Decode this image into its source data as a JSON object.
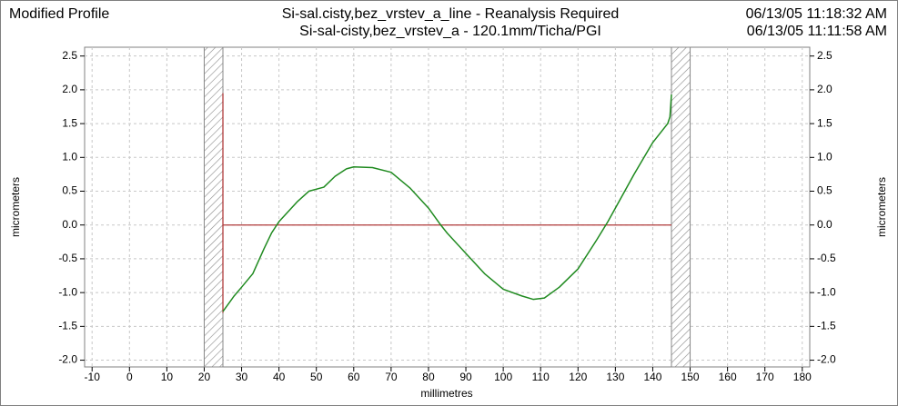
{
  "chart_data": {
    "type": "line",
    "title": "Modified Profile",
    "header_center": [
      "Si-sal.cisty,bez_vrstev_a_line - Reanalysis Required",
      "Si-sal-cisty,bez_vrstev_a - 120.1mm/Ticha/PGI"
    ],
    "header_right": [
      "06/13/05 11:18:32 AM",
      "06/13/05 11:11:58 AM"
    ],
    "x_label": "millimetres",
    "y_label": "micrometers",
    "y2_label": "micrometers",
    "xlim": [
      -12,
      182
    ],
    "ylim": [
      -2.1,
      2.63
    ],
    "y2lim": [
      -2.1,
      2.63
    ],
    "xticks": [
      -10,
      0,
      10,
      20,
      30,
      40,
      50,
      60,
      70,
      80,
      90,
      100,
      110,
      120,
      130,
      140,
      150,
      160,
      170,
      180
    ],
    "yticks": [
      2.5,
      {
        "value": 2,
        "label": "2.0"
      },
      1.5,
      {
        "value": 1,
        "label": "1.0"
      },
      0.5,
      {
        "value": 0,
        "label": "0.0"
      },
      -0.5,
      {
        "value": -1,
        "label": "-1.0"
      },
      -1.5,
      {
        "value": -2,
        "label": "-2.0"
      }
    ],
    "y2ticks": [
      2.5,
      {
        "value": 2,
        "label": "2.0"
      },
      1.5,
      {
        "value": 1,
        "label": "1.0"
      },
      0.5,
      {
        "value": 0,
        "label": "0.0"
      },
      -0.5,
      {
        "value": -1,
        "label": "-1.0"
      },
      -1.5,
      {
        "value": -2,
        "label": "-2.0"
      }
    ],
    "grid": true,
    "excluded_regions": [
      [
        20,
        25
      ],
      [
        145,
        150
      ]
    ],
    "reference": {
      "color": "#b03a3a",
      "x": [
        25,
        25,
        25,
        145
      ],
      "y": [
        1.95,
        -1.3,
        0,
        0
      ]
    },
    "series": [
      {
        "color": "#1f8a1f",
        "x": [
          25,
          28,
          30,
          33,
          36,
          38,
          40,
          45,
          48,
          52,
          55,
          58,
          60,
          65,
          70,
          75,
          80,
          83,
          85,
          90,
          95,
          100,
          105,
          108,
          111,
          115,
          120,
          125,
          128,
          130,
          135,
          140,
          144,
          144.6,
          145
        ],
        "values": [
          -1.28,
          -1.05,
          -0.92,
          -0.72,
          -0.35,
          -0.12,
          0.05,
          0.35,
          0.5,
          0.56,
          0.72,
          0.83,
          0.86,
          0.85,
          0.78,
          0.55,
          0.25,
          0.02,
          -0.12,
          -0.42,
          -0.72,
          -0.95,
          -1.05,
          -1.1,
          -1.08,
          -0.92,
          -0.65,
          -0.22,
          0.05,
          0.25,
          0.75,
          1.22,
          1.5,
          1.6,
          1.93
        ]
      }
    ]
  }
}
